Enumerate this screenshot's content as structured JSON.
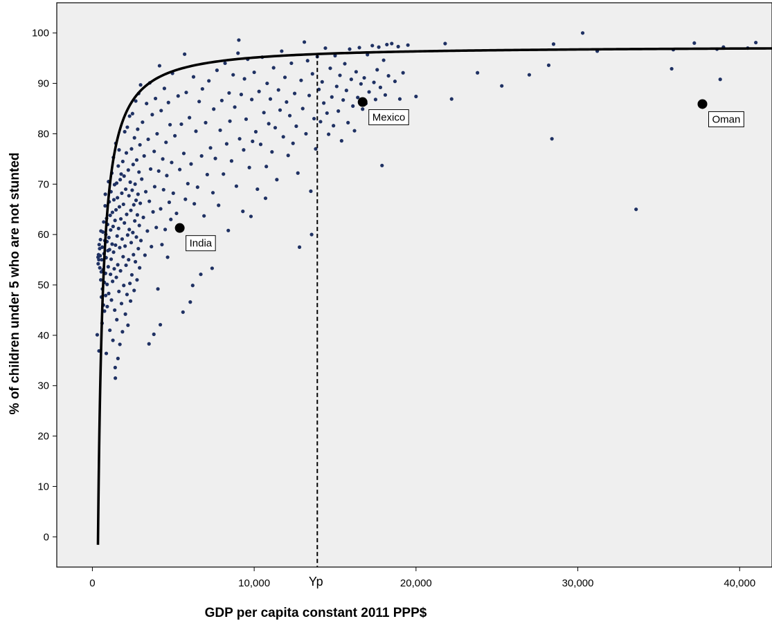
{
  "chart_data": {
    "type": "scatter",
    "xlabel": "GDP per capita constant 2011 PPP$",
    "ylabel": "% of children under 5 who are not stunted",
    "xlim": [
      -2200,
      42000
    ],
    "ylim": [
      -6,
      106
    ],
    "xticks": [
      0,
      10000,
      20000,
      30000,
      40000
    ],
    "xtick_labels": [
      "0",
      "10,000",
      "20,000",
      "30,000",
      "40,000"
    ],
    "yticks": [
      0,
      10,
      20,
      30,
      40,
      50,
      60,
      70,
      80,
      90,
      100
    ],
    "ytick_labels": [
      "0",
      "10",
      "20",
      "30",
      "40",
      "50",
      "60",
      "70",
      "80",
      "90",
      "100"
    ],
    "grid": false,
    "colors": {
      "plot_background": "#efefef",
      "points": "#1f3163",
      "curve": "#000000",
      "highlight": "#000000"
    },
    "fit_curve": {
      "form": "plateau",
      "asymptote": 97.4,
      "x0": 350,
      "k": 1.12
    },
    "reference_line": {
      "x": 13900,
      "label": "Yp",
      "style": "dashed"
    },
    "highlighted": [
      {
        "label": "India",
        "x": 5400,
        "y": 61.3
      },
      {
        "label": "Mexico",
        "x": 16700,
        "y": 86.3
      },
      {
        "label": "Oman",
        "x": 37700,
        "y": 85.9
      }
    ],
    "points": [
      [
        300,
        40.1
      ],
      [
        350,
        55.5
      ],
      [
        360,
        54.2
      ],
      [
        380,
        56.0
      ],
      [
        400,
        55.0
      ],
      [
        410,
        36.9
      ],
      [
        420,
        58.0
      ],
      [
        450,
        57.2
      ],
      [
        460,
        53.4
      ],
      [
        480,
        55.8
      ],
      [
        500,
        59.0
      ],
      [
        520,
        51.0
      ],
      [
        530,
        60.7
      ],
      [
        550,
        52.6
      ],
      [
        560,
        47.6
      ],
      [
        580,
        55.0
      ],
      [
        600,
        42.4
      ],
      [
        610,
        57.5
      ],
      [
        620,
        49.2
      ],
      [
        650,
        60.5
      ],
      [
        660,
        53.0
      ],
      [
        680,
        46.0
      ],
      [
        700,
        62.5
      ],
      [
        720,
        56.2
      ],
      [
        740,
        50.5
      ],
      [
        750,
        44.8
      ],
      [
        770,
        58.8
      ],
      [
        790,
        65.7
      ],
      [
        800,
        68.0
      ],
      [
        810,
        52.3
      ],
      [
        820,
        47.9
      ],
      [
        830,
        60.0
      ],
      [
        850,
        55.4
      ],
      [
        860,
        36.4
      ],
      [
        880,
        63.2
      ],
      [
        900,
        58.6
      ],
      [
        910,
        50.1
      ],
      [
        920,
        45.7
      ],
      [
        940,
        62.0
      ],
      [
        960,
        56.8
      ],
      [
        980,
        53.6
      ],
      [
        1000,
        70.5
      ],
      [
        1010,
        48.3
      ],
      [
        1020,
        59.4
      ],
      [
        1040,
        66.5
      ],
      [
        1060,
        57.0
      ],
      [
        1080,
        41.0
      ],
      [
        1100,
        63.8
      ],
      [
        1120,
        52.1
      ],
      [
        1130,
        60.9
      ],
      [
        1150,
        68.5
      ],
      [
        1160,
        55.1
      ],
      [
        1180,
        47.0
      ],
      [
        1200,
        72.2
      ],
      [
        1220,
        58.1
      ],
      [
        1240,
        64.4
      ],
      [
        1250,
        50.7
      ],
      [
        1270,
        39.0
      ],
      [
        1280,
        61.6
      ],
      [
        1300,
        75.3
      ],
      [
        1310,
        56.5
      ],
      [
        1330,
        66.9
      ],
      [
        1350,
        53.2
      ],
      [
        1370,
        69.9
      ],
      [
        1380,
        45.0
      ],
      [
        1400,
        62.8
      ],
      [
        1410,
        33.6
      ],
      [
        1420,
        31.5
      ],
      [
        1430,
        57.9
      ],
      [
        1450,
        78.1
      ],
      [
        1460,
        64.9
      ],
      [
        1480,
        51.5
      ],
      [
        1500,
        70.2
      ],
      [
        1510,
        43.1
      ],
      [
        1530,
        59.7
      ],
      [
        1550,
        67.3
      ],
      [
        1570,
        54.0
      ],
      [
        1580,
        35.4
      ],
      [
        1600,
        73.6
      ],
      [
        1620,
        61.2
      ],
      [
        1640,
        48.7
      ],
      [
        1650,
        76.8
      ],
      [
        1670,
        65.5
      ],
      [
        1690,
        57.4
      ],
      [
        1700,
        38.2
      ],
      [
        1720,
        70.9
      ],
      [
        1740,
        52.8
      ],
      [
        1760,
        63.1
      ],
      [
        1780,
        72.0
      ],
      [
        1800,
        46.3
      ],
      [
        1820,
        68.2
      ],
      [
        1840,
        59.1
      ],
      [
        1860,
        40.7
      ],
      [
        1880,
        74.5
      ],
      [
        1900,
        55.6
      ],
      [
        1920,
        66.0
      ],
      [
        1940,
        49.9
      ],
      [
        1960,
        71.6
      ],
      [
        1980,
        62.3
      ],
      [
        2000,
        80.4
      ],
      [
        2020,
        57.7
      ],
      [
        2040,
        44.2
      ],
      [
        2060,
        69.0
      ],
      [
        2080,
        53.9
      ],
      [
        2100,
        76.2
      ],
      [
        2120,
        64.0
      ],
      [
        2140,
        48.1
      ],
      [
        2160,
        81.3
      ],
      [
        2180,
        59.9
      ],
      [
        2200,
        42.0
      ],
      [
        2220,
        72.8
      ],
      [
        2240,
        55.0
      ],
      [
        2260,
        67.7
      ],
      [
        2280,
        61.0
      ],
      [
        2300,
        83.5
      ],
      [
        2320,
        50.3
      ],
      [
        2340,
        70.4
      ],
      [
        2360,
        46.8
      ],
      [
        2380,
        64.8
      ],
      [
        2400,
        58.4
      ],
      [
        2420,
        77.0
      ],
      [
        2440,
        52.0
      ],
      [
        2460,
        68.8
      ],
      [
        2480,
        84.0
      ],
      [
        2500,
        60.4
      ],
      [
        2520,
        73.9
      ],
      [
        2540,
        56.0
      ],
      [
        2560,
        65.9
      ],
      [
        2580,
        48.9
      ],
      [
        2600,
        79.2
      ],
      [
        2620,
        62.7
      ],
      [
        2640,
        70.0
      ],
      [
        2660,
        54.6
      ],
      [
        2680,
        86.5
      ],
      [
        2700,
        66.8
      ],
      [
        2720,
        59.5
      ],
      [
        2740,
        74.8
      ],
      [
        2760,
        51.0
      ],
      [
        2780,
        63.9
      ],
      [
        2800,
        80.9
      ],
      [
        2820,
        68.0
      ],
      [
        2840,
        57.2
      ],
      [
        2860,
        88.0
      ],
      [
        2880,
        72.4
      ],
      [
        2900,
        61.8
      ],
      [
        2920,
        53.4
      ],
      [
        2940,
        77.8
      ],
      [
        2960,
        66.2
      ],
      [
        2980,
        89.7
      ],
      [
        3000,
        58.8
      ],
      [
        3050,
        71.0
      ],
      [
        3100,
        82.3
      ],
      [
        3150,
        63.4
      ],
      [
        3200,
        75.6
      ],
      [
        3250,
        55.9
      ],
      [
        3300,
        68.5
      ],
      [
        3350,
        86.0
      ],
      [
        3400,
        60.7
      ],
      [
        3450,
        78.9
      ],
      [
        3500,
        38.3
      ],
      [
        3520,
        66.6
      ],
      [
        3550,
        90.1
      ],
      [
        3600,
        73.0
      ],
      [
        3650,
        57.6
      ],
      [
        3700,
        83.8
      ],
      [
        3750,
        64.5
      ],
      [
        3800,
        40.2
      ],
      [
        3820,
        76.5
      ],
      [
        3850,
        69.5
      ],
      [
        3900,
        87.0
      ],
      [
        3950,
        61.4
      ],
      [
        4000,
        80.0
      ],
      [
        4050,
        49.2
      ],
      [
        4100,
        72.6
      ],
      [
        4150,
        93.5
      ],
      [
        4200,
        42.1
      ],
      [
        4220,
        65.1
      ],
      [
        4250,
        84.6
      ],
      [
        4300,
        58.0
      ],
      [
        4350,
        75.0
      ],
      [
        4400,
        68.9
      ],
      [
        4450,
        89.0
      ],
      [
        4500,
        61.0
      ],
      [
        4550,
        78.3
      ],
      [
        4600,
        71.7
      ],
      [
        4650,
        55.5
      ],
      [
        4700,
        86.2
      ],
      [
        4750,
        66.4
      ],
      [
        4800,
        81.8
      ],
      [
        4850,
        63.0
      ],
      [
        4900,
        74.3
      ],
      [
        4950,
        92.0
      ],
      [
        5000,
        68.2
      ],
      [
        5100,
        79.6
      ],
      [
        5200,
        64.2
      ],
      [
        5300,
        87.5
      ],
      [
        5400,
        72.9
      ],
      [
        5500,
        81.9
      ],
      [
        5600,
        44.6
      ],
      [
        5650,
        76.1
      ],
      [
        5700,
        95.8
      ],
      [
        5750,
        67.0
      ],
      [
        5800,
        88.2
      ],
      [
        5900,
        70.1
      ],
      [
        6000,
        83.2
      ],
      [
        6050,
        46.6
      ],
      [
        6100,
        74.0
      ],
      [
        6200,
        49.9
      ],
      [
        6250,
        91.3
      ],
      [
        6300,
        66.1
      ],
      [
        6400,
        80.5
      ],
      [
        6500,
        69.4
      ],
      [
        6600,
        86.4
      ],
      [
        6700,
        52.1
      ],
      [
        6750,
        75.6
      ],
      [
        6800,
        88.9
      ],
      [
        6900,
        63.7
      ],
      [
        7000,
        82.2
      ],
      [
        7100,
        71.9
      ],
      [
        7200,
        90.5
      ],
      [
        7300,
        77.2
      ],
      [
        7400,
        53.3
      ],
      [
        7450,
        68.3
      ],
      [
        7500,
        84.9
      ],
      [
        7600,
        75.1
      ],
      [
        7700,
        92.6
      ],
      [
        7800,
        65.8
      ],
      [
        7900,
        80.7
      ],
      [
        8000,
        86.6
      ],
      [
        8100,
        72.0
      ],
      [
        8200,
        94.0
      ],
      [
        8300,
        78.0
      ],
      [
        8400,
        60.8
      ],
      [
        8450,
        88.1
      ],
      [
        8500,
        82.5
      ],
      [
        8600,
        74.6
      ],
      [
        8700,
        91.7
      ],
      [
        8800,
        85.3
      ],
      [
        8900,
        69.6
      ],
      [
        9000,
        96.0
      ],
      [
        9050,
        98.6
      ],
      [
        9100,
        79.0
      ],
      [
        9200,
        87.8
      ],
      [
        9300,
        64.6
      ],
      [
        9350,
        76.8
      ],
      [
        9400,
        90.9
      ],
      [
        9500,
        82.9
      ],
      [
        9600,
        94.8
      ],
      [
        9700,
        73.3
      ],
      [
        9800,
        63.6
      ],
      [
        9850,
        86.8
      ],
      [
        9900,
        78.5
      ],
      [
        10000,
        92.2
      ],
      [
        10100,
        80.4
      ],
      [
        10200,
        69.0
      ],
      [
        10300,
        88.4
      ],
      [
        10400,
        77.9
      ],
      [
        10500,
        95.2
      ],
      [
        10600,
        84.2
      ],
      [
        10700,
        67.2
      ],
      [
        10750,
        73.5
      ],
      [
        10800,
        90.0
      ],
      [
        10900,
        82.0
      ],
      [
        11000,
        86.9
      ],
      [
        11100,
        76.4
      ],
      [
        11200,
        93.1
      ],
      [
        11300,
        81.2
      ],
      [
        11400,
        70.9
      ],
      [
        11500,
        88.7
      ],
      [
        11600,
        84.7
      ],
      [
        11700,
        96.4
      ],
      [
        11800,
        79.4
      ],
      [
        11900,
        91.2
      ],
      [
        12000,
        86.3
      ],
      [
        12100,
        75.7
      ],
      [
        12200,
        83.6
      ],
      [
        12300,
        94.0
      ],
      [
        12400,
        78.1
      ],
      [
        12500,
        88.0
      ],
      [
        12600,
        81.5
      ],
      [
        12700,
        72.2
      ],
      [
        12800,
        57.5
      ],
      [
        12900,
        90.6
      ],
      [
        13000,
        85.0
      ],
      [
        13100,
        98.2
      ],
      [
        13200,
        80.0
      ],
      [
        13300,
        94.5
      ],
      [
        13400,
        87.6
      ],
      [
        13500,
        68.6
      ],
      [
        13550,
        60.0
      ],
      [
        13600,
        91.9
      ],
      [
        13700,
        83.0
      ],
      [
        13800,
        77.0
      ],
      [
        13900,
        95.3
      ],
      [
        14000,
        88.8
      ],
      [
        14100,
        82.4
      ],
      [
        14200,
        90.3
      ],
      [
        14300,
        86.1
      ],
      [
        14400,
        97.0
      ],
      [
        14500,
        84.1
      ],
      [
        14600,
        79.9
      ],
      [
        14700,
        93.0
      ],
      [
        14800,
        87.3
      ],
      [
        14900,
        81.6
      ],
      [
        15000,
        95.5
      ],
      [
        15100,
        89.4
      ],
      [
        15200,
        84.5
      ],
      [
        15300,
        91.6
      ],
      [
        15400,
        78.6
      ],
      [
        15500,
        86.7
      ],
      [
        15600,
        93.9
      ],
      [
        15700,
        88.6
      ],
      [
        15800,
        82.2
      ],
      [
        15900,
        96.8
      ],
      [
        16000,
        90.8
      ],
      [
        16100,
        85.5
      ],
      [
        16200,
        80.6
      ],
      [
        16300,
        92.3
      ],
      [
        16400,
        87.2
      ],
      [
        16500,
        97.1
      ],
      [
        16600,
        89.9
      ],
      [
        16700,
        84.9
      ],
      [
        16800,
        91.1
      ],
      [
        16900,
        86.0
      ],
      [
        17000,
        95.7
      ],
      [
        17100,
        88.3
      ],
      [
        17200,
        83.4
      ],
      [
        17300,
        97.5
      ],
      [
        17400,
        90.2
      ],
      [
        17500,
        86.8
      ],
      [
        17600,
        92.7
      ],
      [
        17700,
        97.2
      ],
      [
        17800,
        89.2
      ],
      [
        17900,
        73.7
      ],
      [
        18000,
        94.6
      ],
      [
        18100,
        87.7
      ],
      [
        18200,
        97.7
      ],
      [
        18300,
        91.5
      ],
      [
        18400,
        84.3
      ],
      [
        18500,
        97.9
      ],
      [
        18700,
        90.4
      ],
      [
        18900,
        97.3
      ],
      [
        19000,
        86.9
      ],
      [
        19200,
        92.1
      ],
      [
        19500,
        97.6
      ],
      [
        20000,
        87.4
      ],
      [
        21800,
        97.9
      ],
      [
        22200,
        86.9
      ],
      [
        23800,
        92.1
      ],
      [
        25300,
        89.5
      ],
      [
        27000,
        91.7
      ],
      [
        28200,
        93.6
      ],
      [
        28400,
        79.0
      ],
      [
        28500,
        97.8
      ],
      [
        30300,
        100.0
      ],
      [
        31200,
        96.4
      ],
      [
        33600,
        65.0
      ],
      [
        35800,
        92.9
      ],
      [
        35900,
        96.7
      ],
      [
        37200,
        98.0
      ],
      [
        38600,
        96.8
      ],
      [
        38800,
        90.8
      ],
      [
        39000,
        97.2
      ],
      [
        40500,
        97.0
      ],
      [
        41000,
        98.1
      ]
    ]
  }
}
